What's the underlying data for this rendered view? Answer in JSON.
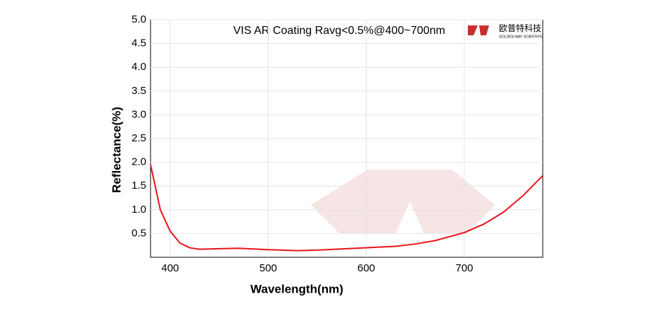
{
  "chart_data": {
    "type": "line",
    "title": "VIS AR Coating Ravg<0.5%@400~700nm",
    "brand": "欧普特科技",
    "brand_subtitle": "GOLDEN WAY SCIENTIFIC",
    "x_label": "Wavelength(nm)",
    "y_label": "Reflectance(%)",
    "x": [
      380,
      390,
      400,
      410,
      420,
      430,
      450,
      470,
      500,
      530,
      550,
      580,
      600,
      630,
      650,
      670,
      700,
      720,
      740,
      760,
      780
    ],
    "series": [
      {
        "name": "Reflectance",
        "color": "#e8141b",
        "values": [
          1.95,
          1.0,
          0.55,
          0.3,
          0.2,
          0.17,
          0.18,
          0.19,
          0.16,
          0.14,
          0.15,
          0.18,
          0.2,
          0.23,
          0.28,
          0.35,
          0.52,
          0.7,
          0.95,
          1.3,
          1.72
        ]
      }
    ],
    "xlim": [
      380,
      780
    ],
    "xticks": [
      400,
      500,
      600,
      700
    ],
    "ylim": [
      0,
      5
    ],
    "yticks": [
      {
        "value": 0.5,
        "label": "0.5"
      },
      {
        "value": 1,
        "label": "1.0"
      },
      1.5,
      {
        "value": 2,
        "label": "2.0"
      },
      2.5,
      {
        "value": 3,
        "label": "3.0"
      },
      3.5,
      {
        "value": 4,
        "label": "4.0"
      },
      4.5,
      {
        "value": 5,
        "label": "5.0"
      }
    ],
    "grid": true
  }
}
